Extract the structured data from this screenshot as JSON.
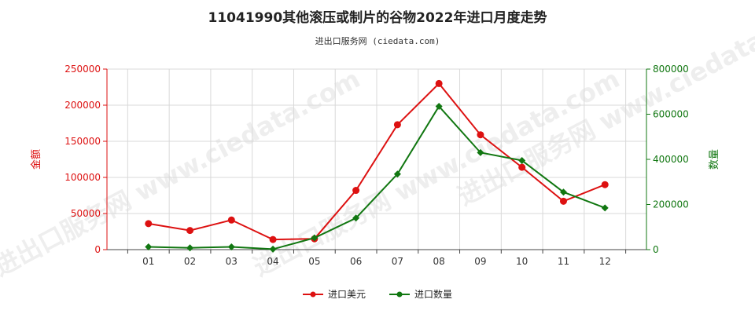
{
  "title": "11041990其他滚压或制片的谷物2022年进口月度走势",
  "subtitle": "进出口服务网 (ciedata.com)",
  "watermark": "进出口服务网 www.ciedata.com",
  "chart_data": {
    "type": "line",
    "categories": [
      "01",
      "02",
      "03",
      "04",
      "05",
      "06",
      "07",
      "08",
      "09",
      "10",
      "11",
      "12"
    ],
    "y_left": {
      "label": "金额",
      "range": [
        0,
        250000
      ],
      "ticks": [
        0,
        50000,
        100000,
        150000,
        200000,
        250000
      ],
      "tick_labels": [
        "0",
        "50000",
        "100000",
        "150000",
        "200000",
        "250000"
      ],
      "color": "#dd1111"
    },
    "y_right": {
      "label": "数量",
      "range": [
        0,
        800000
      ],
      "ticks": [
        0,
        200000,
        400000,
        600000,
        800000
      ],
      "tick_labels": [
        "0",
        "200000",
        "400000",
        "600000",
        "800000"
      ],
      "color": "#117711"
    },
    "grid": true,
    "legend_position": "bottom",
    "series": [
      {
        "name": "进口美元",
        "axis": "left",
        "color": "#dd1111",
        "values": [
          36000,
          26500,
          41000,
          14000,
          15000,
          82000,
          173000,
          230000,
          159000,
          114000,
          67000,
          90000
        ]
      },
      {
        "name": "进口数量",
        "axis": "right",
        "color": "#117711",
        "values": [
          12000,
          8000,
          12000,
          2000,
          52000,
          140000,
          335000,
          635000,
          430000,
          395000,
          255000,
          185000
        ]
      }
    ]
  }
}
